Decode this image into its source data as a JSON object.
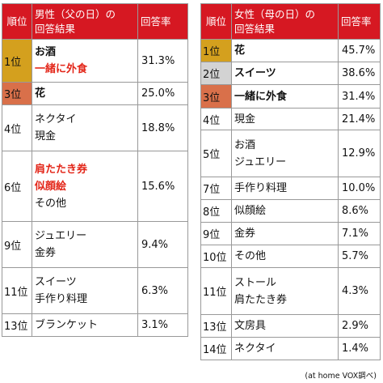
{
  "colors": {
    "header_bg": "#d61822",
    "gold": "#d4a01e",
    "silver": "#d3d3d3",
    "bronze": "#d9704a",
    "highlight_text": "#e32619"
  },
  "left": {
    "header": {
      "rank": "順位",
      "title_line1": "男性（父の日）の",
      "title_line2": "回答結果",
      "rate": "回答率"
    },
    "rows": [
      {
        "rank": "1位",
        "items": [
          "お酒",
          "一緒に外食"
        ],
        "rate": "31.3%"
      },
      {
        "rank": "3位",
        "items": [
          "花"
        ],
        "rate": "25.0%"
      },
      {
        "rank": "4位",
        "items": [
          "ネクタイ",
          "現金"
        ],
        "rate": "18.8%"
      },
      {
        "rank": "6位",
        "items": [
          "肩たたき券",
          "似顔絵",
          "その他"
        ],
        "rate": "15.6%"
      },
      {
        "rank": "9位",
        "items": [
          "ジュエリー",
          "金券"
        ],
        "rate": "9.4%"
      },
      {
        "rank": "11位",
        "items": [
          "スイーツ",
          "手作り料理"
        ],
        "rate": "6.3%"
      },
      {
        "rank": "13位",
        "items": [
          "ブランケット"
        ],
        "rate": "3.1%"
      }
    ]
  },
  "right": {
    "header": {
      "rank": "順位",
      "title_line1": "女性（母の日）の",
      "title_line2": "回答結果",
      "rate": "回答率"
    },
    "rows": [
      {
        "rank": "1位",
        "items": [
          "花"
        ],
        "rate": "45.7%"
      },
      {
        "rank": "2位",
        "items": [
          "スイーツ"
        ],
        "rate": "38.6%"
      },
      {
        "rank": "3位",
        "items": [
          "一緒に外食"
        ],
        "rate": "31.4%"
      },
      {
        "rank": "4位",
        "items": [
          "現金"
        ],
        "rate": "21.4%"
      },
      {
        "rank": "5位",
        "items": [
          "お酒",
          "ジュエリー"
        ],
        "rate": "12.9%"
      },
      {
        "rank": "7位",
        "items": [
          "手作り料理"
        ],
        "rate": "10.0%"
      },
      {
        "rank": "8位",
        "items": [
          "似顔絵"
        ],
        "rate": "8.6%"
      },
      {
        "rank": "9位",
        "items": [
          "金券"
        ],
        "rate": "7.1%"
      },
      {
        "rank": "10位",
        "items": [
          "その他"
        ],
        "rate": "5.7%"
      },
      {
        "rank": "11位",
        "items": [
          "ストール",
          "肩たたき券"
        ],
        "rate": "4.3%"
      },
      {
        "rank": "13位",
        "items": [
          "文房具"
        ],
        "rate": "2.9%"
      },
      {
        "rank": "14位",
        "items": [
          "ネクタイ"
        ],
        "rate": "1.4%"
      }
    ]
  },
  "credit": "(at home VOX調べ)"
}
